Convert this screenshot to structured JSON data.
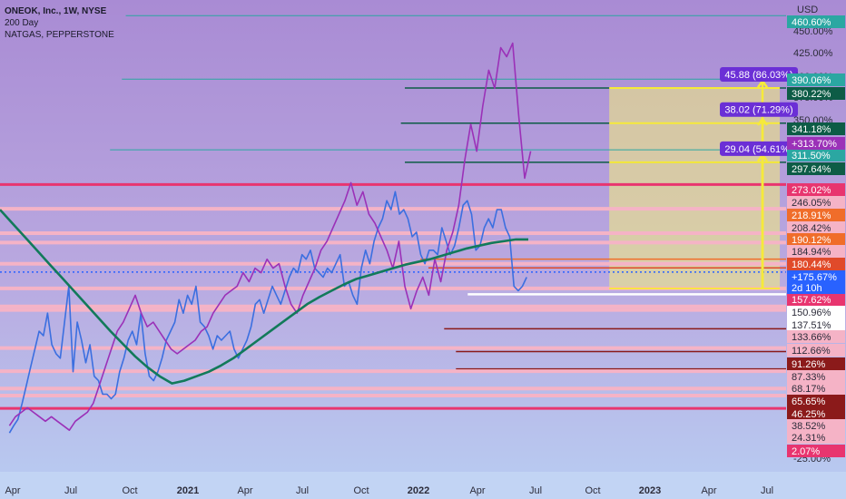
{
  "header": {
    "symbol": "ONEOK, Inc., 1W, NYSE",
    "indicator": "200 Day",
    "compare": "NATGAS, PEPPERSTONE"
  },
  "chart_data": {
    "type": "line",
    "currency_label": "USD",
    "y_scale": "percent",
    "ylim": [
      -24,
      478
    ],
    "grid": false,
    "x_ticks": [
      "Apr",
      "Jul",
      "Oct",
      "2021",
      "Apr",
      "Jul",
      "Oct",
      "2022",
      "Apr",
      "Jul",
      "Oct",
      "2023",
      "Apr",
      "Jul"
    ],
    "x_tick_bold": [
      false,
      false,
      false,
      true,
      false,
      false,
      false,
      true,
      false,
      false,
      false,
      true,
      false,
      false
    ],
    "y_ticks": [
      "450.00%",
      "425.00%",
      "400.00%",
      "375.00%",
      "350.00%",
      "-25.00%"
    ],
    "y_tick_values": [
      450,
      425,
      400,
      375,
      350,
      -25
    ],
    "series": [
      {
        "color": "#3b6fe0",
        "values": [
          -3,
          5,
          12,
          30,
          50,
          70,
          90,
          110,
          105,
          130,
          95,
          85,
          80,
          120,
          160,
          65,
          120,
          100,
          75,
          95,
          60,
          55,
          40,
          40,
          35,
          40,
          65,
          80,
          100,
          110,
          95,
          130,
          85,
          60,
          55,
          65,
          80,
          100,
          110,
          120,
          145,
          130,
          150,
          140,
          160,
          120,
          115,
          105,
          90,
          105,
          100,
          105,
          110,
          90,
          80,
          90,
          100,
          115,
          140,
          145,
          130,
          145,
          160,
          150,
          140,
          155,
          170,
          180,
          175,
          195,
          190,
          200,
          180,
          175,
          170,
          180,
          175,
          185,
          195,
          160,
          165,
          150,
          140,
          180,
          200,
          185,
          210,
          225,
          235,
          255,
          245,
          265,
          240,
          245,
          235,
          215,
          220,
          195,
          185,
          200,
          200,
          195,
          225,
          210,
          195,
          205,
          225,
          250,
          255,
          240,
          200,
          205,
          225,
          235,
          225,
          245,
          245,
          225,
          215,
          160,
          155,
          160,
          170
        ]
      },
      {
        "color": "#9b31b8",
        "values": [
          5,
          15,
          20,
          25,
          20,
          15,
          10,
          15,
          10,
          5,
          0,
          10,
          15,
          20,
          30,
          50,
          70,
          90,
          110,
          120,
          135,
          150,
          130,
          115,
          120,
          110,
          100,
          90,
          85,
          90,
          95,
          100,
          110,
          115,
          130,
          140,
          150,
          155,
          160,
          175,
          165,
          180,
          175,
          190,
          180,
          185,
          160,
          140,
          130,
          150,
          165,
          180,
          200,
          210,
          225,
          240,
          255,
          275,
          250,
          265,
          240,
          230,
          215,
          200,
          180,
          210,
          160,
          135,
          155,
          170,
          150,
          190,
          165,
          200,
          220,
          250,
          300,
          340,
          310,
          360,
          400,
          380,
          425,
          415,
          430,
          350,
          280,
          310
        ]
      },
      {
        "color": "#127a5a",
        "values": [
          245,
          230,
          215,
          200,
          185,
          170,
          155,
          140,
          125,
          110,
          96,
          82,
          70,
          60,
          52,
          55,
          60,
          65,
          72,
          80,
          90,
          100,
          110,
          120,
          130,
          140,
          148,
          155,
          162,
          168,
          172,
          176,
          180,
          184,
          187,
          190,
          194,
          198,
          202,
          205,
          208,
          210,
          212,
          212
        ]
      }
    ],
    "horizontal_lines": [
      {
        "label": "460.60%",
        "value": 460.6,
        "color": "#2ba7a2",
        "label_bg": "#2ba7a2",
        "line_width": 1,
        "x_start": 0.16
      },
      {
        "label": "390.06%",
        "value": 390.06,
        "color": "#2ba7a2",
        "label_bg": "#2ba7a2",
        "line_width": 1,
        "x_start": 0.155
      },
      {
        "label": "380.22%",
        "value": 380.22,
        "color": "#0d5c46",
        "label_bg": "#0d5c46",
        "line_width": 1.5,
        "x_start": 0.515
      },
      {
        "label": "341.18%",
        "value": 341.18,
        "color": "#0d5c46",
        "label_bg": "#0d5c46",
        "line_width": 1.5,
        "x_start": 0.51
      },
      {
        "label": "311.50%",
        "value": 311.5,
        "color": "#2ba7a2",
        "label_bg": "#2ba7a2",
        "line_width": 1,
        "x_start": 0.14
      },
      {
        "label": "297.64%",
        "value": 297.64,
        "color": "#0d5c46",
        "label_bg": "#0d5c46",
        "line_width": 1.5,
        "x_start": 0.515
      },
      {
        "label": "273.02%",
        "value": 273.02,
        "color": "#e8356f",
        "label_bg": "#e8356f",
        "line_width": 3,
        "x_start": 0
      },
      {
        "label": "246.05%",
        "value": 246.05,
        "color": "#f5b3c6",
        "label_bg": "#f5b3c6",
        "line_width": 4,
        "x_start": 0
      },
      {
        "label": "218.91%",
        "value": 218.91,
        "color": "#f5b3c6",
        "label_bg": "#f06d2a",
        "line_width": 4,
        "x_start": 0
      },
      {
        "label": "208.42%",
        "value": 208.42,
        "color": "#f5b3c6",
        "label_bg": "#f5b3c6",
        "line_width": 4,
        "x_start": 0
      },
      {
        "label": "190.12%",
        "value": 190.12,
        "color": "#f06d2a",
        "label_bg": "#f06d2a",
        "line_width": 1.5,
        "x_start": 0.535
      },
      {
        "label": "184.94%",
        "value": 184.94,
        "color": "#f5b3c6",
        "label_bg": "#f5b3c6",
        "line_width": 4,
        "x_start": 0
      },
      {
        "label": "180.44%",
        "value": 180.44,
        "color": "#e04a2a",
        "label_bg": "#e04a2a",
        "line_width": 1.5,
        "x_start": 0.545
      },
      {
        "label": "157.62%",
        "value": 157.62,
        "color": "#f5b3c6",
        "label_bg": "#e8356f",
        "line_width": 4,
        "x_start": 0
      },
      {
        "label": "150.96%",
        "value": 150.96,
        "color": "#ffffff",
        "label_bg": "#ffffff",
        "line_width": 2.5,
        "x_start": 0.595
      },
      {
        "label": "137.51%",
        "value": 137.51,
        "color": "#f5b3c6",
        "label_bg": "#ffffff",
        "line_width": 4,
        "x_start": 0
      },
      {
        "label": "133.66%",
        "value": 133.66,
        "color": "#f5b3c6",
        "label_bg": "#f5b3c6",
        "line_width": 4,
        "x_start": 0
      },
      {
        "label": "112.66%",
        "value": 112.66,
        "color": "#8b1a1a",
        "label_bg": "#f5b3c6",
        "line_width": 1.5,
        "x_start": 0.565
      },
      {
        "label": "91.26%",
        "value": 91.26,
        "color": "#f5b3c6",
        "label_bg": "#8b1a1a",
        "line_width": 4,
        "x_start": 0
      },
      {
        "label": "87.33%",
        "value": 87.33,
        "color": "#8b1a1a",
        "label_bg": "#f5b3c6",
        "line_width": 1.5,
        "x_start": 0.58
      },
      {
        "label": "68.17%",
        "value": 68.17,
        "color": "#8b1a1a",
        "label_bg": "#f5b3c6",
        "line_width": 1.5,
        "x_start": 0.58
      },
      {
        "label": "65.65%",
        "value": 65.65,
        "color": "#f5b3c6",
        "label_bg": "#8b1a1a",
        "line_width": 4,
        "x_start": 0
      },
      {
        "label": "46.25%",
        "value": 46.25,
        "color": "#f5b3c6",
        "label_bg": "#8b1a1a",
        "line_width": 4,
        "x_start": 0
      },
      {
        "label": "38.52%",
        "value": 38.52,
        "color": "#f5b3c6",
        "label_bg": "#f5b3c6",
        "line_width": 4,
        "x_start": 0
      },
      {
        "label": "24.31%",
        "value": 24.31,
        "color": "#e8356f",
        "label_bg": "#f5b3c6",
        "line_width": 3,
        "x_start": 0
      },
      {
        "label": "2.07%",
        "value": 2.07,
        "color": "#e8356f",
        "label_bg": "#e8356f",
        "line_width": 0,
        "x_start": 0
      }
    ],
    "current_value": {
      "label": "+175.67%",
      "sublabel": "2d 10h",
      "value": 175.67,
      "color": "#2962ff"
    },
    "compare_value": {
      "label": "+313.70%",
      "value": 313.7,
      "color": "#9b31b8"
    },
    "measure_box": {
      "value_top": 380.22,
      "value_bottom": 157.62,
      "x_start": 0.775,
      "x_end": 0.992,
      "fill": "#f4ee7a",
      "opacity": 0.55
    },
    "measure_labels": [
      {
        "text": "45.88 (86.03%)",
        "value": 380.22,
        "anchor_value": 388
      },
      {
        "text": "38.02 (71.29%)",
        "value": 341.18,
        "anchor_value": 346
      },
      {
        "text": "29.04 (54.61%)",
        "value": 297.64,
        "anchor_value": 306
      }
    ]
  }
}
